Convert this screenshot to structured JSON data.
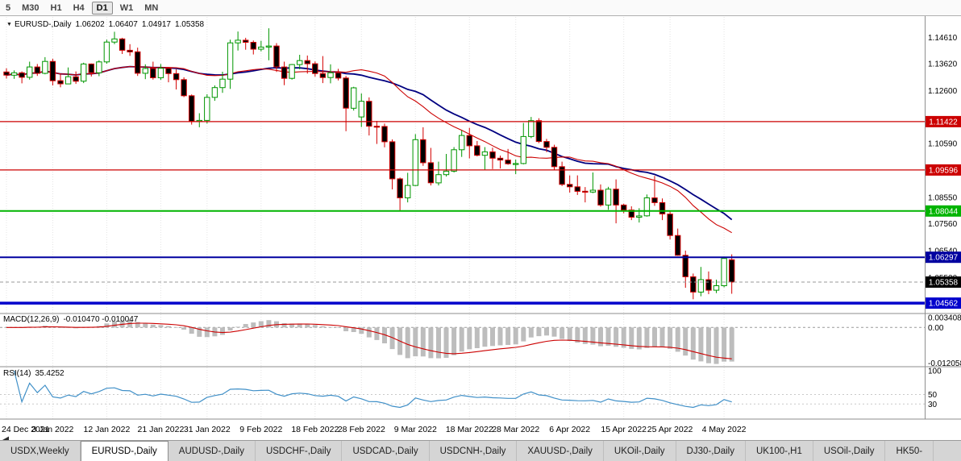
{
  "toolbar": {
    "timeframes": [
      {
        "label": "5",
        "active": false
      },
      {
        "label": "M30",
        "active": false
      },
      {
        "label": "H1",
        "active": false
      },
      {
        "label": "H4",
        "active": false
      },
      {
        "label": "D1",
        "active": true
      },
      {
        "label": "W1",
        "active": false
      },
      {
        "label": "MN",
        "active": false
      }
    ]
  },
  "chart_header": {
    "symbol": "EURUSD-,Daily",
    "open": "1.06202",
    "high": "1.06407",
    "low": "1.04917",
    "close": "1.05358"
  },
  "indicators": {
    "macd": {
      "name": "MACD(12,26,9)",
      "values": "-0.010470 -0.010047",
      "axis_labels": [
        "0.003408",
        "0.00",
        "-0.012058"
      ],
      "fast": 12,
      "slow": 26,
      "signal": 9
    },
    "rsi": {
      "name": "RSI(14)",
      "value": "35.4252",
      "axis_labels": [
        "100",
        "50",
        "30"
      ],
      "period": 14,
      "levels": [
        50,
        30
      ]
    }
  },
  "price_axis": {
    "ticks": [
      "1.14610",
      "1.13620",
      "1.12600",
      "1.10590",
      "1.08550",
      "1.07560",
      "1.06540",
      "1.05520"
    ],
    "badges": [
      {
        "label": "1.11422",
        "value": 1.11422,
        "color": "#cc0000",
        "current": false
      },
      {
        "label": "1.09596",
        "value": 1.09596,
        "color": "#cc0000",
        "current": false
      },
      {
        "label": "1.08044",
        "value": 1.08044,
        "color": "#00b400",
        "current": false
      },
      {
        "label": "1.06297",
        "value": 1.06297,
        "color": "#0000a0",
        "current": false
      },
      {
        "label": "1.05358",
        "value": 1.05358,
        "color": "#000000",
        "current": true
      },
      {
        "label": "1.04562",
        "value": 1.04562,
        "color": "#0000cc",
        "current": false
      }
    ]
  },
  "hlines": [
    {
      "value": 1.11422,
      "color": "#cc0000",
      "width": 1.2
    },
    {
      "value": 1.09596,
      "color": "#cc0000",
      "width": 1.2
    },
    {
      "value": 1.08044,
      "color": "#00b400",
      "width": 2
    },
    {
      "value": 1.06297,
      "color": "#0000a0",
      "width": 2
    },
    {
      "value": 1.04562,
      "color": "#0000cc",
      "width": 3.5
    }
  ],
  "x_axis": {
    "labels": [
      {
        "index": 0,
        "text": "24 Dec 2021"
      },
      {
        "index": 6,
        "text": "3 Jan 2022"
      },
      {
        "index": 13,
        "text": "12 Jan 2022"
      },
      {
        "index": 20,
        "text": "21 Jan 2022"
      },
      {
        "index": 26,
        "text": "31 Jan 2022"
      },
      {
        "index": 33,
        "text": "9 Feb 2022"
      },
      {
        "index": 40,
        "text": "18 Feb 2022"
      },
      {
        "index": 46,
        "text": "28 Feb 2022"
      },
      {
        "index": 53,
        "text": "9 Mar 2022"
      },
      {
        "index": 60,
        "text": "18 Mar 2022"
      },
      {
        "index": 66,
        "text": "28 Mar 2022"
      },
      {
        "index": 73,
        "text": "6 Apr 2022"
      },
      {
        "index": 80,
        "text": "15 Apr 2022"
      },
      {
        "index": 86,
        "text": "25 Apr 2022"
      },
      {
        "index": 93,
        "text": "4 May 2022"
      }
    ]
  },
  "tabs": [
    {
      "label": "USDX,Weekly",
      "active": false
    },
    {
      "label": "EURUSD-,Daily",
      "active": true
    },
    {
      "label": "AUDUSD-,Daily",
      "active": false
    },
    {
      "label": "USDCHF-,Daily",
      "active": false
    },
    {
      "label": "USDCAD-,Daily",
      "active": false
    },
    {
      "label": "USDCNH-,Daily",
      "active": false
    },
    {
      "label": "XAUUSD-,Daily",
      "active": false
    },
    {
      "label": "UKOil-,Daily",
      "active": false
    },
    {
      "label": "DJ30-,Daily",
      "active": false
    },
    {
      "label": "UK100-,H1",
      "active": false
    },
    {
      "label": "USOil-,Daily",
      "active": false
    },
    {
      "label": "HK50-",
      "active": false
    }
  ],
  "chart_data": {
    "type": "candlestick",
    "symbol": "EURUSD-,Daily",
    "timeframe": "Daily",
    "price_range": [
      1.042,
      1.1535
    ],
    "up_color": "#009600",
    "down_color": "#d40000",
    "up_fill": "#ffffff",
    "down_fill": "#000000",
    "overlays": [
      {
        "type": "sma",
        "period": 21,
        "color": "#cc0000",
        "width": 1.1
      },
      {
        "type": "sma",
        "period": 26,
        "color": "#000080",
        "width": 1.8
      }
    ],
    "macd_range": [
      -0.0128,
      0.0042
    ],
    "rsi_range": [
      0,
      105
    ],
    "candles": [
      [
        1.133,
        1.1344,
        1.1305,
        1.1318
      ],
      [
        1.1318,
        1.1336,
        1.1304,
        1.1327
      ],
      [
        1.1327,
        1.1332,
        1.1287,
        1.131
      ],
      [
        1.131,
        1.1369,
        1.1301,
        1.1349
      ],
      [
        1.1349,
        1.136,
        1.1315,
        1.1325
      ],
      [
        1.1325,
        1.1386,
        1.1321,
        1.137
      ],
      [
        1.137,
        1.138,
        1.1279,
        1.1297
      ],
      [
        1.1297,
        1.1324,
        1.1272,
        1.1285
      ],
      [
        1.1285,
        1.1347,
        1.1284,
        1.1312
      ],
      [
        1.1312,
        1.1332,
        1.1285,
        1.1295
      ],
      [
        1.1295,
        1.1365,
        1.1288,
        1.136
      ],
      [
        1.136,
        1.1362,
        1.1313,
        1.1327
      ],
      [
        1.1327,
        1.1374,
        1.1314,
        1.1368
      ],
      [
        1.1368,
        1.1452,
        1.1361,
        1.1443
      ],
      [
        1.1443,
        1.1482,
        1.1435,
        1.1455
      ],
      [
        1.1455,
        1.1459,
        1.1398,
        1.1412
      ],
      [
        1.1412,
        1.1435,
        1.1391,
        1.1406
      ],
      [
        1.1406,
        1.1422,
        1.1315,
        1.1325
      ],
      [
        1.1325,
        1.1359,
        1.1303,
        1.1343
      ],
      [
        1.1343,
        1.1369,
        1.1301,
        1.1308
      ],
      [
        1.1308,
        1.136,
        1.13,
        1.1344
      ],
      [
        1.1344,
        1.1349,
        1.1291,
        1.1324
      ],
      [
        1.1324,
        1.134,
        1.1264,
        1.1301
      ],
      [
        1.1301,
        1.131,
        1.1235,
        1.124
      ],
      [
        1.124,
        1.1245,
        1.1131,
        1.1143
      ],
      [
        1.1143,
        1.1174,
        1.1121,
        1.1147
      ],
      [
        1.1147,
        1.1246,
        1.1135,
        1.1234
      ],
      [
        1.1234,
        1.1279,
        1.1221,
        1.1271
      ],
      [
        1.1271,
        1.1331,
        1.1251,
        1.1303
      ],
      [
        1.1303,
        1.1452,
        1.1266,
        1.144
      ],
      [
        1.144,
        1.1483,
        1.1411,
        1.145
      ],
      [
        1.145,
        1.1459,
        1.1414,
        1.1442
      ],
      [
        1.1442,
        1.1449,
        1.1396,
        1.1416
      ],
      [
        1.1416,
        1.1448,
        1.1408,
        1.1424
      ],
      [
        1.1424,
        1.1495,
        1.1374,
        1.1428
      ],
      [
        1.1428,
        1.1439,
        1.133,
        1.1349
      ],
      [
        1.1349,
        1.1369,
        1.128,
        1.1306
      ],
      [
        1.1306,
        1.136,
        1.1301,
        1.1358
      ],
      [
        1.1358,
        1.1395,
        1.134,
        1.1373
      ],
      [
        1.1373,
        1.1392,
        1.1324,
        1.1361
      ],
      [
        1.1361,
        1.137,
        1.1312,
        1.1324
      ],
      [
        1.1324,
        1.139,
        1.1288,
        1.1309
      ],
      [
        1.1309,
        1.1359,
        1.1287,
        1.1327
      ],
      [
        1.1327,
        1.1342,
        1.1298,
        1.1307
      ],
      [
        1.1307,
        1.1315,
        1.1106,
        1.1193
      ],
      [
        1.1193,
        1.1274,
        1.1184,
        1.127
      ],
      [
        1.116,
        1.1249,
        1.1122,
        1.1219
      ],
      [
        1.1219,
        1.1234,
        1.109,
        1.1125
      ],
      [
        1.1125,
        1.1145,
        1.1058,
        1.1124
      ],
      [
        1.1124,
        1.1135,
        1.1045,
        1.1066
      ],
      [
        1.1066,
        1.1075,
        1.0886,
        1.0926
      ],
      [
        1.0926,
        1.0931,
        1.0805,
        1.0854
      ],
      [
        1.0854,
        1.0949,
        1.0837,
        1.0901
      ],
      [
        1.0901,
        1.1095,
        1.0899,
        1.1074
      ],
      [
        1.1074,
        1.1121,
        1.0975,
        1.0987
      ],
      [
        1.0987,
        1.1043,
        1.0901,
        1.0911
      ],
      [
        1.0911,
        1.0991,
        1.0901,
        1.0942
      ],
      [
        1.0942,
        1.102,
        1.0935,
        1.0955
      ],
      [
        1.0955,
        1.1046,
        1.095,
        1.1036
      ],
      [
        1.1036,
        1.1109,
        1.1009,
        1.109
      ],
      [
        1.109,
        1.1119,
        1.1003,
        1.1051
      ],
      [
        1.1051,
        1.1069,
        1.1011,
        1.1015
      ],
      [
        1.1015,
        1.1046,
        1.0961,
        1.1028
      ],
      [
        1.1028,
        1.1044,
        1.0963,
        1.1004
      ],
      [
        1.1004,
        1.1014,
        1.0965,
        1.0997
      ],
      [
        1.0997,
        1.1039,
        1.0979,
        1.0983
      ],
      [
        1.0983,
        1.0999,
        1.0944,
        1.0984
      ],
      [
        1.0984,
        1.1137,
        1.0981,
        1.1086
      ],
      [
        1.1086,
        1.116,
        1.108,
        1.1146
      ],
      [
        1.1146,
        1.1155,
        1.1061,
        1.1067
      ],
      [
        1.1067,
        1.1077,
        1.1027,
        1.1045
      ],
      [
        1.1045,
        1.1055,
        1.096,
        1.0972
      ],
      [
        1.0972,
        1.0991,
        1.0899,
        1.0905
      ],
      [
        1.0905,
        1.0939,
        1.0874,
        1.0896
      ],
      [
        1.0896,
        1.0939,
        1.0865,
        1.0879
      ],
      [
        1.0879,
        1.0895,
        1.0837,
        1.0876
      ],
      [
        1.0876,
        1.095,
        1.0872,
        1.0883
      ],
      [
        1.0883,
        1.0905,
        1.0821,
        1.0827
      ],
      [
        1.0827,
        1.0896,
        1.0809,
        1.0887
      ],
      [
        1.0887,
        1.0924,
        1.0758,
        1.0827
      ],
      [
        1.0827,
        1.0832,
        1.0796,
        1.0808
      ],
      [
        1.0808,
        1.0822,
        1.077,
        1.0781
      ],
      [
        1.0781,
        1.0815,
        1.0761,
        1.0786
      ],
      [
        1.0786,
        1.0867,
        1.0783,
        1.0854
      ],
      [
        1.0854,
        1.0937,
        1.0824,
        1.0836
      ],
      [
        1.0836,
        1.0852,
        1.077,
        1.0793
      ],
      [
        1.0793,
        1.0804,
        1.0697,
        1.0712
      ],
      [
        1.0712,
        1.0738,
        1.0635,
        1.0637
      ],
      [
        1.0637,
        1.0655,
        1.0514,
        1.0556
      ],
      [
        1.0556,
        1.0568,
        1.0471,
        1.0498
      ],
      [
        1.0498,
        1.0593,
        1.0482,
        1.0545
      ],
      [
        1.0545,
        1.0576,
        1.049,
        1.0505
      ],
      [
        1.0505,
        1.0545,
        1.0494,
        1.0522
      ],
      [
        1.0522,
        1.0632,
        1.0516,
        1.0625
      ],
      [
        1.06202,
        1.06407,
        1.04917,
        1.05358
      ]
    ]
  }
}
